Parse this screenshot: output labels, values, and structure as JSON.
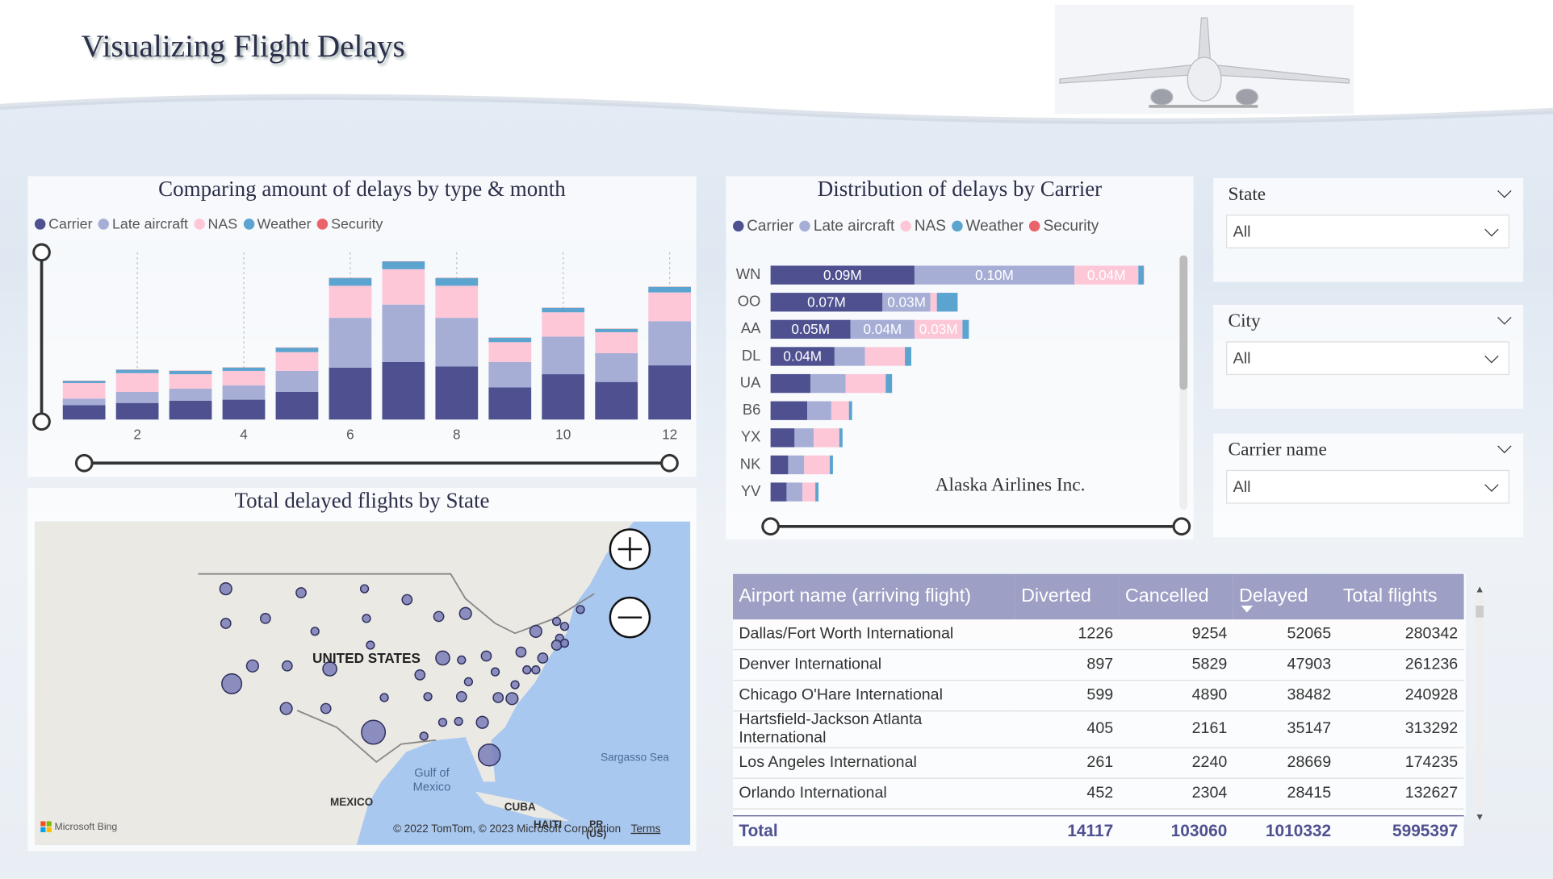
{
  "header": {
    "title": "Visualizing Flight Delays"
  },
  "chart_data": [
    {
      "type": "bar",
      "stacked": true,
      "title": "Comparing amount of delays by type & month",
      "x": [
        1,
        2,
        3,
        4,
        5,
        6,
        7,
        8,
        9,
        10,
        11,
        12
      ],
      "xlim": [
        0.5,
        12.5
      ],
      "xticks": [
        2,
        4,
        6,
        8,
        10,
        12
      ],
      "series": [
        {
          "name": "Carrier",
          "color": "#4e5090",
          "values": [
            13,
            15,
            17,
            18,
            25,
            47,
            52,
            48,
            29,
            41,
            34,
            49
          ]
        },
        {
          "name": "Late aircraft",
          "color": "#a6aed6",
          "values": [
            6,
            10,
            11,
            13,
            19,
            45,
            52,
            44,
            23,
            34,
            26,
            40
          ]
        },
        {
          "name": "NAS",
          "color": "#fdc7d8",
          "values": [
            14,
            17,
            13,
            13,
            17,
            29,
            32,
            29,
            18,
            22,
            19,
            26
          ]
        },
        {
          "name": "Weather",
          "color": "#5ba4d0",
          "values": [
            2,
            3,
            3,
            3,
            4,
            7,
            7,
            7,
            4,
            4,
            3,
            5
          ]
        },
        {
          "name": "Security",
          "color": "#e8636a",
          "values": [
            0.2,
            0.2,
            0.2,
            0.2,
            0.2,
            0.2,
            0.2,
            0.2,
            0.2,
            0.2,
            0.2,
            0.2
          ]
        }
      ]
    },
    {
      "type": "barh",
      "stacked": true,
      "title": "Distribution of delays by Carrier",
      "categories": [
        "WN",
        "OO",
        "AA",
        "DL",
        "UA",
        "B6",
        "YX",
        "NK",
        "YV"
      ],
      "series": [
        {
          "name": "Carrier",
          "color": "#4e5090",
          "values": [
            0.09,
            0.07,
            0.05,
            0.04,
            0.025,
            0.023,
            0.015,
            0.011,
            0.01
          ],
          "value_labels": [
            "0.09M",
            "0.07M",
            "0.05M",
            "0.04M",
            null,
            null,
            null,
            null,
            null
          ]
        },
        {
          "name": "Late aircraft",
          "color": "#a6aed6",
          "values": [
            0.1,
            0.03,
            0.04,
            0.019,
            0.022,
            0.015,
            0.012,
            0.01,
            0.01
          ],
          "value_labels": [
            "0.10M",
            "0.03M",
            "0.04M",
            null,
            null,
            null,
            null,
            null,
            null
          ]
        },
        {
          "name": "NAS",
          "color": "#fdc7d8",
          "values": [
            0.04,
            0.004,
            0.03,
            0.025,
            0.025,
            0.011,
            0.016,
            0.016,
            0.008
          ],
          "value_labels": [
            "0.04M",
            null,
            "0.03M",
            null,
            null,
            null,
            null,
            null,
            null
          ]
        },
        {
          "name": "Weather",
          "color": "#5ba4d0",
          "values": [
            0.003,
            0.013,
            0.004,
            0.004,
            0.004,
            0.002,
            0.002,
            0.002,
            0.002
          ]
        },
        {
          "name": "Security",
          "color": "#e8636a",
          "values": [
            0.0005,
            0,
            0,
            0,
            0,
            0,
            0,
            0,
            0
          ]
        }
      ],
      "annotation": "Alaska Airlines Inc."
    }
  ],
  "map": {
    "title": "Total delayed flights by State",
    "labels": [
      "UNITED STATES",
      "Gulf of Mexico",
      "MEXICO",
      "CUBA",
      "Sargasso Sea",
      "HAITI",
      "PR (US)"
    ],
    "attribution": "Microsoft Bing",
    "copyright": "© 2022 TomTom, © 2023 Microsoft Corporation",
    "terms": "Terms"
  },
  "filters": [
    {
      "title": "State",
      "value": "All"
    },
    {
      "title": "City",
      "value": "All"
    },
    {
      "title": "Carrier name",
      "value": "All"
    }
  ],
  "table": {
    "columns": [
      "Airport name (arriving flight)",
      "Diverted",
      "Cancelled",
      "Delayed",
      "Total flights"
    ],
    "rows": [
      [
        "Dallas/Fort Worth International",
        1226,
        9254,
        52065,
        280342
      ],
      [
        "Denver International",
        897,
        5829,
        47903,
        261236
      ],
      [
        "Chicago O'Hare International",
        599,
        4890,
        38482,
        240928
      ],
      [
        "Hartsfield-Jackson Atlanta International",
        405,
        2161,
        35147,
        313292
      ],
      [
        "Los Angeles International",
        261,
        2240,
        28669,
        174235
      ],
      [
        "Orlando International",
        452,
        2304,
        28415,
        132627
      ]
    ],
    "total": {
      "label": "Total",
      "values": [
        14117,
        103060,
        1010332,
        5995397
      ]
    }
  }
}
